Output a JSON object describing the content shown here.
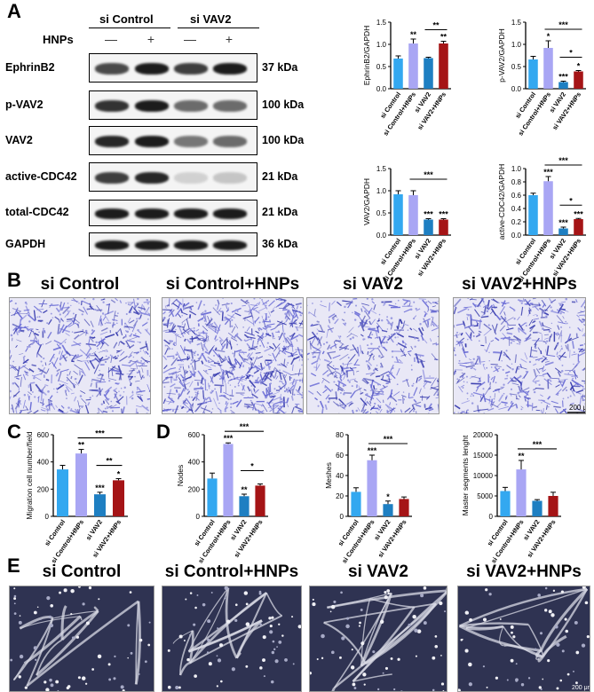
{
  "panels": {
    "A": "A",
    "B": "B",
    "C": "C",
    "D": "D",
    "E": "E"
  },
  "western_blot": {
    "group_labels": [
      "si Control",
      "si VAV2"
    ],
    "hnps_label": "HNPs",
    "hnps_signs": [
      "—",
      "+",
      "—",
      "+"
    ],
    "rows": [
      {
        "name": "EphrinB2",
        "kda": "37 kDa",
        "intensity": [
          0.75,
          0.95,
          0.8,
          0.95
        ]
      },
      {
        "name": "p-VAV2",
        "kda": "100 kDa",
        "intensity": [
          0.85,
          0.95,
          0.6,
          0.6
        ]
      },
      {
        "name": "VAV2",
        "kda": "100 kDa",
        "intensity": [
          0.9,
          0.95,
          0.55,
          0.6
        ]
      },
      {
        "name": "active-CDC42",
        "kda": "21 kDa",
        "intensity": [
          0.8,
          0.9,
          0.15,
          0.2
        ]
      },
      {
        "name": "total-CDC42",
        "kda": "21 kDa",
        "intensity": [
          0.95,
          0.95,
          0.95,
          0.95
        ]
      },
      {
        "name": "GAPDH",
        "kda": "36 kDa",
        "intensity": [
          0.95,
          0.95,
          0.95,
          0.95
        ]
      }
    ]
  },
  "colors": {
    "si_control": "#33a8f0",
    "si_control_hnps": "#a9a6f4",
    "si_vav2": "#1e7fc2",
    "si_vav2_hnps": "#a51416"
  },
  "chart_data": [
    {
      "id": "ephrinb2",
      "type": "bar",
      "ylabel": "EphrinB2/GAPDH",
      "categories": [
        "si Control",
        "si Control+HNPs",
        "si VAV2",
        "si VAV2+HNPs"
      ],
      "values": [
        0.68,
        1.02,
        0.69,
        1.02
      ],
      "errors": [
        0.06,
        0.1,
        0.02,
        0.05
      ],
      "ylim": [
        0,
        1.5
      ],
      "yticks": [
        "0.0",
        "0.5",
        "1.0",
        "1.5"
      ],
      "stars": [
        "",
        "**",
        "",
        "**"
      ],
      "brackets": [
        {
          "from": 2,
          "to": 3,
          "label": "**"
        }
      ]
    },
    {
      "id": "pvav2",
      "type": "bar",
      "ylabel": "p-VAV2/GAPDH",
      "categories": [
        "si Control",
        "si Control+HNPs",
        "si VAV2",
        "si VAV2+HNPs"
      ],
      "values": [
        0.66,
        0.92,
        0.15,
        0.39
      ],
      "errors": [
        0.07,
        0.16,
        0.02,
        0.02
      ],
      "ylim": [
        0,
        1.5
      ],
      "yticks": [
        "0.0",
        "0.5",
        "1.0",
        "1.5"
      ],
      "stars": [
        "",
        "*",
        "***",
        "*"
      ],
      "brackets": [
        {
          "from": 1,
          "to": 3,
          "label": "***"
        },
        {
          "from": 2,
          "to": 3,
          "label": "*"
        }
      ]
    },
    {
      "id": "vav2",
      "type": "bar",
      "ylabel": "VAV2/GAPDH",
      "categories": [
        "si Control",
        "si Control+HNPs",
        "si VAV2",
        "si VAV2+HNPs"
      ],
      "values": [
        0.92,
        0.9,
        0.35,
        0.35
      ],
      "errors": [
        0.08,
        0.1,
        0.02,
        0.02
      ],
      "ylim": [
        0,
        1.5
      ],
      "yticks": [
        "0.0",
        "0.5",
        "1.0",
        "1.5"
      ],
      "stars": [
        "",
        "",
        "***",
        "***"
      ],
      "brackets": [
        {
          "from": 1,
          "to": 3,
          "label": "***"
        }
      ]
    },
    {
      "id": "cdc42",
      "type": "bar",
      "ylabel": "active-CDC42/GAPDH",
      "categories": [
        "si Control",
        "si Control+HNPs",
        "si VAV2",
        "si VAV2+HNPs"
      ],
      "values": [
        0.6,
        0.81,
        0.1,
        0.24
      ],
      "errors": [
        0.03,
        0.07,
        0.02,
        0.01
      ],
      "ylim": [
        0,
        1.0
      ],
      "yticks": [
        "0.0",
        "0.2",
        "0.4",
        "0.6",
        "0.8",
        "1.0"
      ],
      "stars": [
        "",
        "***",
        "***",
        "***"
      ],
      "brackets": [
        {
          "from": 1,
          "to": 3,
          "label": "***"
        },
        {
          "from": 2,
          "to": 3,
          "label": "*"
        }
      ]
    },
    {
      "id": "migration",
      "type": "bar",
      "ylabel": "Migration cell number/field",
      "categories": [
        "si Control",
        "si Control+HNPs",
        "si VAV2",
        "si VAV2+HNPs"
      ],
      "values": [
        345,
        462,
        162,
        265
      ],
      "errors": [
        30,
        30,
        15,
        12
      ],
      "ylim": [
        0,
        600
      ],
      "yticks": [
        "0",
        "200",
        "400",
        "600"
      ],
      "stars": [
        "",
        "**",
        "***",
        "*"
      ],
      "brackets": [
        {
          "from": 1,
          "to": 3,
          "label": "***"
        },
        {
          "from": 2,
          "to": 3,
          "label": "**"
        }
      ]
    },
    {
      "id": "nodes",
      "type": "bar",
      "ylabel": "Nodes",
      "categories": [
        "si Control",
        "si Control+HNPs",
        "si VAV2",
        "si VAV2+HNPs"
      ],
      "values": [
        278,
        532,
        148,
        226
      ],
      "errors": [
        40,
        8,
        15,
        12
      ],
      "ylim": [
        0,
        600
      ],
      "yticks": [
        "0",
        "200",
        "400",
        "600"
      ],
      "stars": [
        "",
        "***",
        "**",
        ""
      ],
      "brackets": [
        {
          "from": 1,
          "to": 3,
          "label": "***"
        },
        {
          "from": 2,
          "to": 3,
          "label": "*"
        }
      ]
    },
    {
      "id": "meshes",
      "type": "bar",
      "ylabel": "Meshes",
      "categories": [
        "si Control",
        "si Control+HNPs",
        "si VAV2",
        "si VAV2+HNPs"
      ],
      "values": [
        24,
        55,
        12,
        17
      ],
      "errors": [
        4,
        5,
        3,
        2
      ],
      "ylim": [
        0,
        80
      ],
      "yticks": [
        "0",
        "20",
        "40",
        "60",
        "80"
      ],
      "stars": [
        "",
        "***",
        "*",
        ""
      ],
      "brackets": [
        {
          "from": 1,
          "to": 3,
          "label": "***"
        }
      ]
    },
    {
      "id": "segments",
      "type": "bar",
      "ylabel": "Master segments lenght",
      "categories": [
        "si Control",
        "si Control+HNPs",
        "si VAV2",
        "si VAV2+HNPs"
      ],
      "values": [
        6200,
        11500,
        3800,
        5000
      ],
      "errors": [
        900,
        2200,
        300,
        900
      ],
      "ylim": [
        0,
        20000
      ],
      "yticks": [
        "0",
        "5000",
        "10000",
        "15000",
        "20000"
      ],
      "stars": [
        "",
        "**",
        "",
        ""
      ],
      "brackets": [
        {
          "from": 1,
          "to": 3,
          "label": "***"
        }
      ]
    }
  ],
  "transwell": {
    "titles": [
      "si Control",
      "si Control+HNPs",
      "si VAV2",
      "si VAV2+HNPs"
    ],
    "density": [
      0.55,
      0.85,
      0.45,
      0.5
    ],
    "scale_label": "200 μm"
  },
  "tube": {
    "titles": [
      "si Control",
      "si Control+HNPs",
      "si VAV2",
      "si VAV2+HNPs"
    ],
    "scale_label": "200 μm"
  }
}
